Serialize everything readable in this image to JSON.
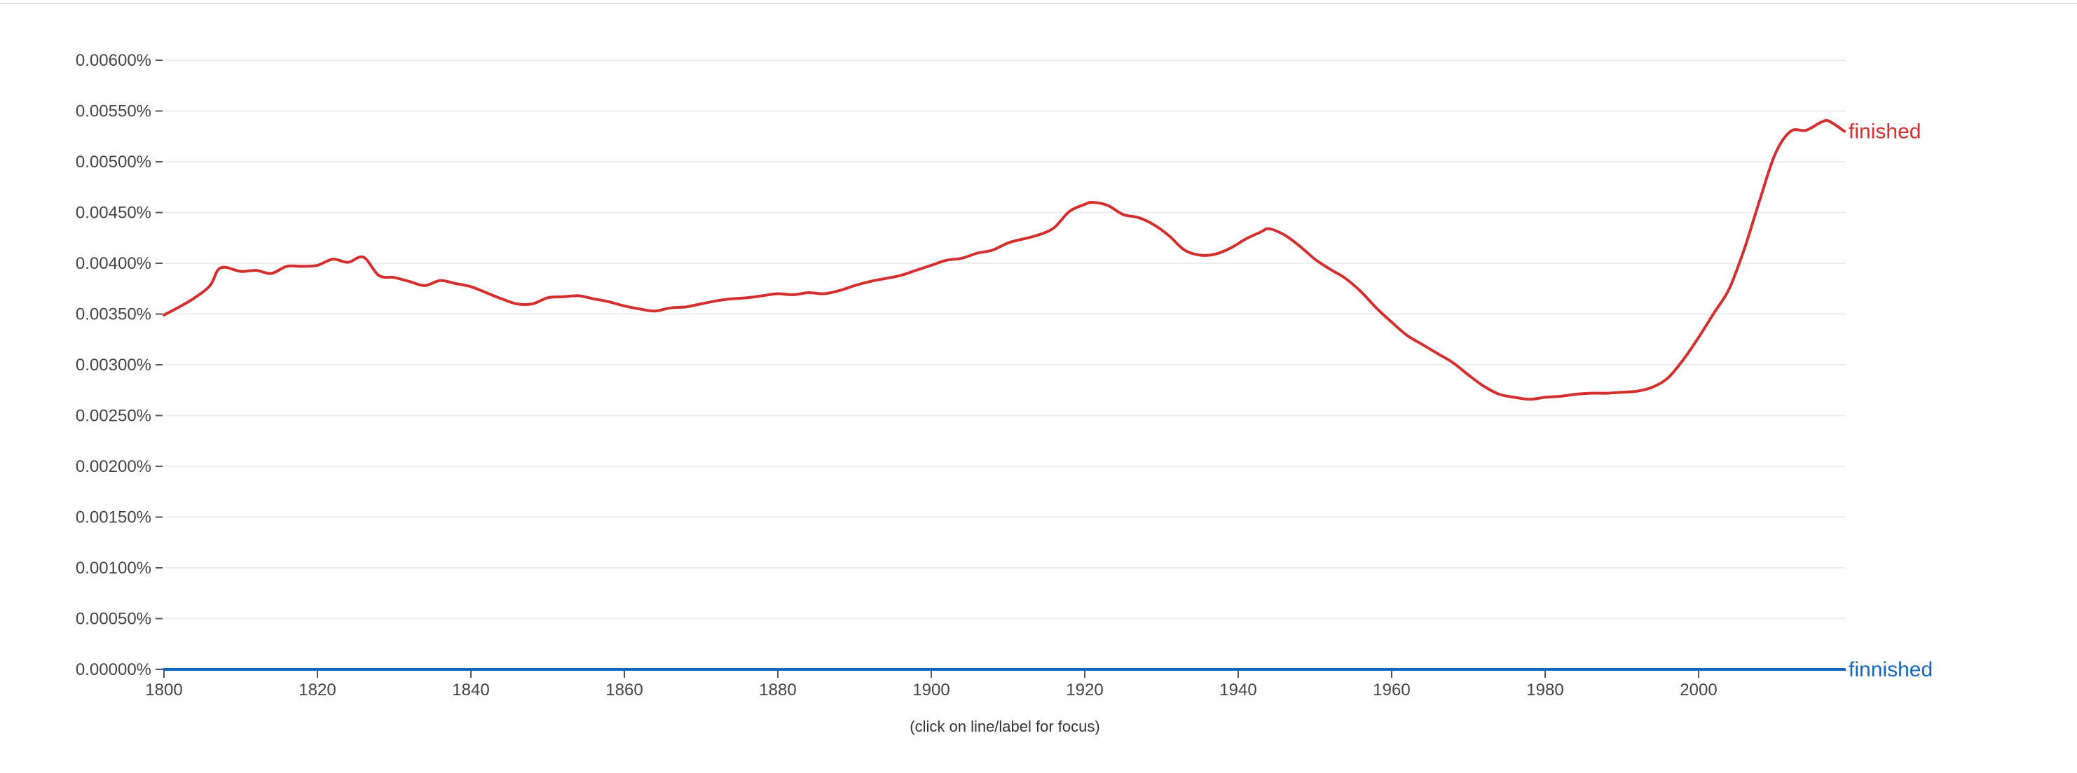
{
  "chart_data": {
    "type": "line",
    "title": "",
    "xlabel": "",
    "ylabel": "",
    "xlim": [
      1800,
      2019
    ],
    "ylim": [
      0,
      0.006
    ],
    "grid": true,
    "legend": "inline labels at right end of lines",
    "x_ticks": [
      1800,
      1820,
      1840,
      1860,
      1880,
      1900,
      1920,
      1940,
      1960,
      1980,
      2000
    ],
    "y_ticks": [
      {
        "value": 0.0,
        "label": "0.00000%"
      },
      {
        "value": 0.0005,
        "label": "0.00050%"
      },
      {
        "value": 0.001,
        "label": "0.00100%"
      },
      {
        "value": 0.0015,
        "label": "0.00150%"
      },
      {
        "value": 0.002,
        "label": "0.00200%"
      },
      {
        "value": 0.0025,
        "label": "0.00250%"
      },
      {
        "value": 0.003,
        "label": "0.00300%"
      },
      {
        "value": 0.0035,
        "label": "0.00350%"
      },
      {
        "value": 0.004,
        "label": "0.00400%"
      },
      {
        "value": 0.0045,
        "label": "0.00450%"
      },
      {
        "value": 0.005,
        "label": "0.00500%"
      },
      {
        "value": 0.0055,
        "label": "0.00550%"
      },
      {
        "value": 0.006,
        "label": "0.00600%"
      }
    ],
    "series": [
      {
        "name": "finished",
        "color": "#d32f2f",
        "points": [
          [
            1800,
            0.00349
          ],
          [
            1802,
            0.00357
          ],
          [
            1804,
            0.00366
          ],
          [
            1806,
            0.00378
          ],
          [
            1807,
            0.00393
          ],
          [
            1808,
            0.00396
          ],
          [
            1810,
            0.00392
          ],
          [
            1812,
            0.00393
          ],
          [
            1814,
            0.0039
          ],
          [
            1816,
            0.00397
          ],
          [
            1818,
            0.00397
          ],
          [
            1820,
            0.00398
          ],
          [
            1822,
            0.00404
          ],
          [
            1824,
            0.00401
          ],
          [
            1826,
            0.00406
          ],
          [
            1828,
            0.00388
          ],
          [
            1830,
            0.00386
          ],
          [
            1832,
            0.00382
          ],
          [
            1834,
            0.00378
          ],
          [
            1836,
            0.00383
          ],
          [
            1838,
            0.0038
          ],
          [
            1840,
            0.00377
          ],
          [
            1842,
            0.00371
          ],
          [
            1844,
            0.00365
          ],
          [
            1846,
            0.0036
          ],
          [
            1848,
            0.0036
          ],
          [
            1850,
            0.00366
          ],
          [
            1852,
            0.00367
          ],
          [
            1854,
            0.00368
          ],
          [
            1856,
            0.00365
          ],
          [
            1858,
            0.00362
          ],
          [
            1860,
            0.00358
          ],
          [
            1862,
            0.00355
          ],
          [
            1864,
            0.00353
          ],
          [
            1866,
            0.00356
          ],
          [
            1868,
            0.00357
          ],
          [
            1870,
            0.0036
          ],
          [
            1872,
            0.00363
          ],
          [
            1874,
            0.00365
          ],
          [
            1876,
            0.00366
          ],
          [
            1878,
            0.00368
          ],
          [
            1880,
            0.0037
          ],
          [
            1882,
            0.00369
          ],
          [
            1884,
            0.00371
          ],
          [
            1886,
            0.0037
          ],
          [
            1888,
            0.00373
          ],
          [
            1890,
            0.00378
          ],
          [
            1892,
            0.00382
          ],
          [
            1894,
            0.00385
          ],
          [
            1896,
            0.00388
          ],
          [
            1898,
            0.00393
          ],
          [
            1900,
            0.00398
          ],
          [
            1902,
            0.00403
          ],
          [
            1904,
            0.00405
          ],
          [
            1906,
            0.0041
          ],
          [
            1908,
            0.00413
          ],
          [
            1910,
            0.0042
          ],
          [
            1912,
            0.00424
          ],
          [
            1914,
            0.00428
          ],
          [
            1916,
            0.00435
          ],
          [
            1918,
            0.00451
          ],
          [
            1920,
            0.00458
          ],
          [
            1921,
            0.0046
          ],
          [
            1923,
            0.00457
          ],
          [
            1925,
            0.00448
          ],
          [
            1927,
            0.00445
          ],
          [
            1929,
            0.00438
          ],
          [
            1931,
            0.00427
          ],
          [
            1933,
            0.00413
          ],
          [
            1935,
            0.00408
          ],
          [
            1937,
            0.00409
          ],
          [
            1939,
            0.00415
          ],
          [
            1941,
            0.00424
          ],
          [
            1943,
            0.00431
          ],
          [
            1944,
            0.00434
          ],
          [
            1946,
            0.00428
          ],
          [
            1948,
            0.00417
          ],
          [
            1950,
            0.00404
          ],
          [
            1952,
            0.00394
          ],
          [
            1954,
            0.00385
          ],
          [
            1956,
            0.00372
          ],
          [
            1958,
            0.00356
          ],
          [
            1960,
            0.00342
          ],
          [
            1962,
            0.00329
          ],
          [
            1964,
            0.0032
          ],
          [
            1966,
            0.00311
          ],
          [
            1968,
            0.00302
          ],
          [
            1970,
            0.0029
          ],
          [
            1972,
            0.00279
          ],
          [
            1974,
            0.00271
          ],
          [
            1976,
            0.00268
          ],
          [
            1978,
            0.00266
          ],
          [
            1980,
            0.00268
          ],
          [
            1982,
            0.00269
          ],
          [
            1984,
            0.00271
          ],
          [
            1986,
            0.00272
          ],
          [
            1988,
            0.00272
          ],
          [
            1990,
            0.00273
          ],
          [
            1992,
            0.00274
          ],
          [
            1994,
            0.00278
          ],
          [
            1996,
            0.00287
          ],
          [
            1998,
            0.00305
          ],
          [
            2000,
            0.00327
          ],
          [
            2002,
            0.00351
          ],
          [
            2004,
            0.00375
          ],
          [
            2006,
            0.00415
          ],
          [
            2008,
            0.00463
          ],
          [
            2010,
            0.00508
          ],
          [
            2012,
            0.0053
          ],
          [
            2014,
            0.00531
          ],
          [
            2016,
            0.00539
          ],
          [
            2017,
            0.0054
          ],
          [
            2019,
            0.0053
          ]
        ]
      },
      {
        "name": "finnished",
        "color": "#1565c0",
        "points": [
          [
            1800,
            0.0
          ],
          [
            1850,
            0.0
          ],
          [
            1900,
            0.0
          ],
          [
            1950,
            0.0
          ],
          [
            2000,
            0.0
          ],
          [
            2019,
            0.0
          ]
        ]
      }
    ]
  },
  "footer": {
    "hint": "(click on line/label for focus)"
  }
}
